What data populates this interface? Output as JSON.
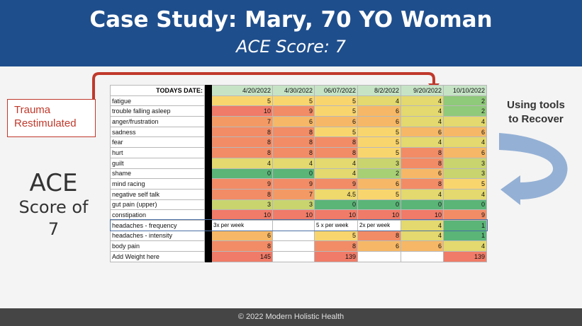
{
  "header": {
    "title": "Case Study: Mary, 70 YO Woman",
    "subtitle": "ACE Score: 7"
  },
  "left_panel": {
    "trauma_line1": "Trauma",
    "trauma_line2": "Restimulated",
    "ace_line1": "ACE",
    "ace_line2": "Score of",
    "ace_line3": "7"
  },
  "right_panel": {
    "line1": "Using tools",
    "line2": "to Recover"
  },
  "footer": "© 2022 Modern Holistic Health",
  "table": {
    "header_label": "TODAYS DATE:",
    "dates": [
      "4/20/2022",
      "4/30/2022",
      "06/07/2022",
      "8/2/2022",
      "9/20/2022",
      "10/10/2022"
    ],
    "rows": [
      {
        "label": "fatigue",
        "values": [
          "5",
          "5",
          "5",
          "4",
          "4",
          "2"
        ],
        "colors": [
          "#f9d56e",
          "#f9d56e",
          "#f9d56e",
          "#e3d96e",
          "#e3d96e",
          "#8fc97a"
        ]
      },
      {
        "label": "trouble falling asleep",
        "values": [
          "10",
          "9",
          "5",
          "6",
          "4",
          "2"
        ],
        "colors": [
          "#f07b68",
          "#f28c66",
          "#f9d56e",
          "#f6b866",
          "#e3d96e",
          "#8fc97a"
        ]
      },
      {
        "label": "anger/frustration",
        "values": [
          "7",
          "6",
          "6",
          "6",
          "4",
          "4"
        ],
        "colors": [
          "#f39a64",
          "#f6b866",
          "#f6b866",
          "#f6b866",
          "#e3d96e",
          "#e3d96e"
        ]
      },
      {
        "label": "sadness",
        "values": [
          "8",
          "8",
          "5",
          "5",
          "6",
          "6"
        ],
        "colors": [
          "#f28c66",
          "#f28c66",
          "#f9d56e",
          "#f9d56e",
          "#f6b866",
          "#f6b866"
        ]
      },
      {
        "label": "fear",
        "values": [
          "8",
          "8",
          "8",
          "5",
          "4",
          "4"
        ],
        "colors": [
          "#f28c66",
          "#f28c66",
          "#f28c66",
          "#f9d56e",
          "#e3d96e",
          "#e3d96e"
        ]
      },
      {
        "label": "hurt",
        "values": [
          "8",
          "8",
          "8",
          "5",
          "8",
          "6"
        ],
        "colors": [
          "#f28c66",
          "#f28c66",
          "#f28c66",
          "#f9d56e",
          "#f28c66",
          "#f6b866"
        ]
      },
      {
        "label": "guilt",
        "values": [
          "4",
          "4",
          "4",
          "3",
          "8",
          "3"
        ],
        "colors": [
          "#e3d96e",
          "#e3d96e",
          "#e3d96e",
          "#c9d46f",
          "#f28c66",
          "#c9d46f"
        ]
      },
      {
        "label": "shame",
        "values": [
          "0",
          "0",
          "4",
          "2",
          "6",
          "3"
        ],
        "colors": [
          "#5ab577",
          "#5ab577",
          "#e3d96e",
          "#a7cf74",
          "#f6b866",
          "#c9d46f"
        ]
      },
      {
        "label": "mind racing",
        "values": [
          "9",
          "9",
          "9",
          "6",
          "8",
          "5"
        ],
        "colors": [
          "#f28c66",
          "#f28c66",
          "#f28c66",
          "#f6b866",
          "#f28c66",
          "#f9d56e"
        ]
      },
      {
        "label": "negative self talk",
        "values": [
          "8",
          "7",
          "4.5",
          "5",
          "4",
          "4"
        ],
        "colors": [
          "#f28c66",
          "#f39a64",
          "#efd86c",
          "#f9d56e",
          "#e3d96e",
          "#e3d96e"
        ]
      },
      {
        "label": "gut pain (upper)",
        "values": [
          "3",
          "3",
          "0",
          "0",
          "0",
          "0"
        ],
        "colors": [
          "#c9d46f",
          "#c9d46f",
          "#5ab577",
          "#5ab577",
          "#5ab577",
          "#5ab577"
        ]
      },
      {
        "label": "constipation",
        "values": [
          "10",
          "10",
          "10",
          "10",
          "10",
          "9"
        ],
        "colors": [
          "#f07b68",
          "#f07b68",
          "#f07b68",
          "#f07b68",
          "#f07b68",
          "#f28c66"
        ]
      },
      {
        "label": "headaches - frequency",
        "values": [
          "3x per week",
          "",
          "5 x per week",
          "2x per week",
          "4",
          "1"
        ],
        "colors": [
          "#ffffff",
          "#ffffff",
          "#ffffff",
          "#ffffff",
          "#e3d96e",
          "#5ab577"
        ]
      },
      {
        "label": "headaches - intensity",
        "values": [
          "6",
          "",
          "5",
          "8",
          "4",
          "1"
        ],
        "colors": [
          "#f6b866",
          "#ffffff",
          "#f9d56e",
          "#f28c66",
          "#e3d96e",
          "#5ab577"
        ]
      },
      {
        "label": "body pain",
        "values": [
          "8",
          "",
          "8",
          "6",
          "6",
          "4"
        ],
        "colors": [
          "#f28c66",
          "#ffffff",
          "#f28c66",
          "#f6b866",
          "#f6b866",
          "#e3d96e"
        ]
      },
      {
        "label": "Add Weight here",
        "values": [
          "145",
          "",
          "139",
          "",
          "",
          "139"
        ],
        "colors": [
          "#f07b68",
          "#ffffff",
          "#f07b68",
          "#ffffff",
          "#ffffff",
          "#f07b68"
        ]
      }
    ]
  },
  "colors": {
    "header_bg": "#1f4e8c",
    "trauma_red": "#c0392b",
    "arrow_blue": "#7f9fc9"
  }
}
